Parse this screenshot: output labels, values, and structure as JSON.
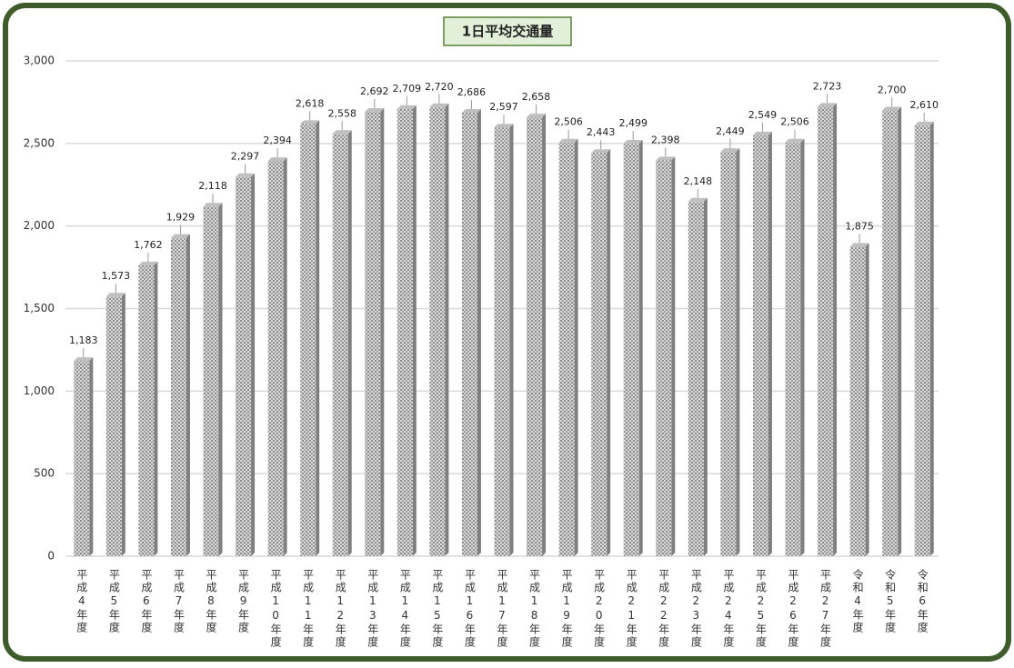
{
  "chart_data": {
    "type": "bar",
    "title": "1日平均交通量",
    "categories": [
      "平成4年度",
      "平成5年度",
      "平成6年度",
      "平成7年度",
      "平成8年度",
      "平成9年度",
      "平成10年度",
      "平成11年度",
      "平成12年度",
      "平成13年度",
      "平成14年度",
      "平成15年度",
      "平成16年度",
      "平成17年度",
      "平成18年度",
      "平成19年度",
      "平成20年度",
      "平成21年度",
      "平成22年度",
      "平成23年度",
      "平成24年度",
      "平成25年度",
      "平成26年度",
      "平成27年度",
      "令和4年度",
      "令和5年度",
      "令和6年度"
    ],
    "values": [
      1183,
      1573,
      1762,
      1929,
      2118,
      2297,
      2394,
      2618,
      2558,
      2692,
      2709,
      2720,
      2686,
      2597,
      2658,
      2506,
      2443,
      2499,
      2398,
      2148,
      2449,
      2549,
      2506,
      2723,
      1875,
      2700,
      2610
    ],
    "value_labels": [
      "1,183",
      "1,573",
      "1,762",
      "1,929",
      "2,118",
      "2,297",
      "2,394",
      "2,618",
      "2,558",
      "2,692",
      "2,709",
      "2,720",
      "2,686",
      "2,597",
      "2,658",
      "2,506",
      "2,443",
      "2,499",
      "2,398",
      "2,148",
      "2,449",
      "2,549",
      "2,506",
      "2,723",
      "1,875",
      "2,700",
      "2,610"
    ],
    "color": "#a6a6a6",
    "ylim": [
      0,
      3000
    ],
    "yticks": [
      0,
      500,
      {
        "value": 1000,
        "label": "1,000"
      },
      {
        "value": 1500,
        "label": "1,500"
      },
      {
        "value": 2000,
        "label": "2,000"
      },
      {
        "value": 2500,
        "label": "2,500"
      },
      {
        "value": 3000,
        "label": "3,000"
      }
    ],
    "grid": true
  }
}
